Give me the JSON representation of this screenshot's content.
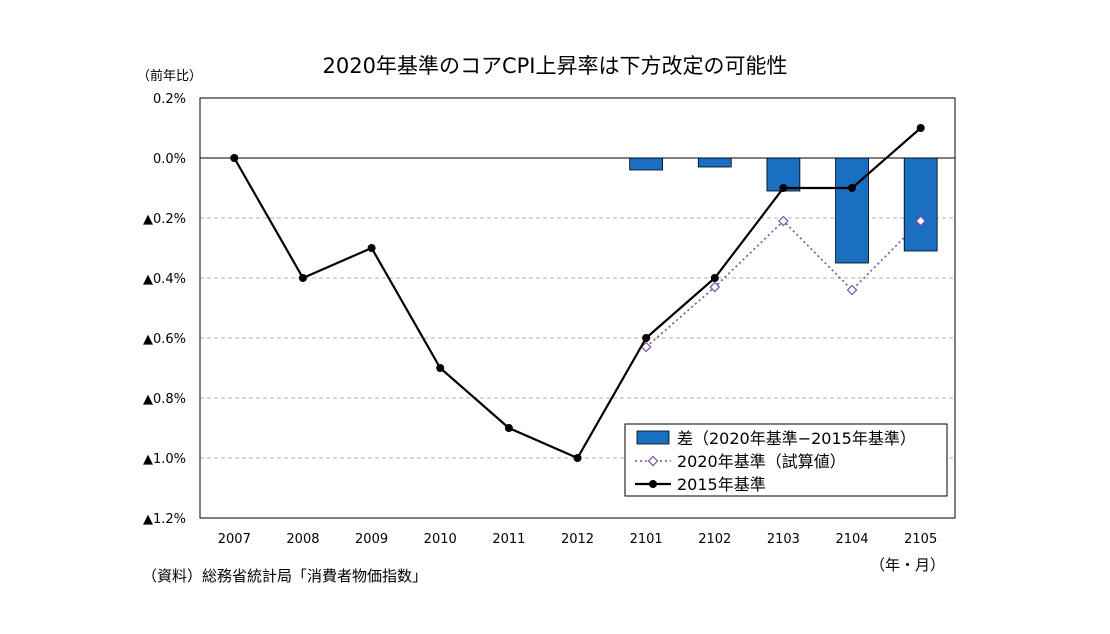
{
  "chart_data": {
    "type": "bar+line",
    "title": "2020年基準のコアCPI上昇率は下方改定の可能性",
    "ylabel": "（前年比）",
    "xlabel": "（年・月）",
    "source": "（資料）総務省統計局「消費者物価指数」",
    "categories": [
      "2007",
      "2008",
      "2009",
      "2010",
      "2011",
      "2012",
      "2101",
      "2102",
      "2103",
      "2104",
      "2105"
    ],
    "ylim": [
      -1.2,
      0.2
    ],
    "yticks": [
      {
        "value": 0.2,
        "label": "0.2%"
      },
      {
        "value": 0.0,
        "label": "0.0%"
      },
      {
        "value": -0.2,
        "label": "▲0.2%"
      },
      {
        "value": -0.4,
        "label": "▲0.4%"
      },
      {
        "value": -0.6,
        "label": "▲0.6%"
      },
      {
        "value": -0.8,
        "label": "▲0.8%"
      },
      {
        "value": -1.0,
        "label": "▲1.0%"
      },
      {
        "value": -1.2,
        "label": "▲1.2%"
      }
    ],
    "grid": true,
    "legend_position": "bottom-right",
    "series": [
      {
        "name": "差（2020年基準−2015年基準）",
        "kind": "bar",
        "color": "#1a6fc1",
        "values": [
          null,
          null,
          null,
          null,
          null,
          null,
          -0.04,
          -0.03,
          -0.11,
          -0.35,
          -0.31
        ]
      },
      {
        "name": "2020年基準（試算値）",
        "kind": "line-dotted-diamond",
        "color": "#7a4fa0",
        "values": [
          null,
          null,
          null,
          null,
          null,
          null,
          -0.63,
          -0.43,
          -0.21,
          -0.44,
          -0.21
        ]
      },
      {
        "name": "2015年基準",
        "kind": "line-solid-circle",
        "color": "#000000",
        "values": [
          0.0,
          -0.4,
          -0.3,
          -0.7,
          -0.9,
          -1.0,
          -0.6,
          -0.4,
          -0.1,
          -0.1,
          0.1
        ]
      }
    ]
  }
}
